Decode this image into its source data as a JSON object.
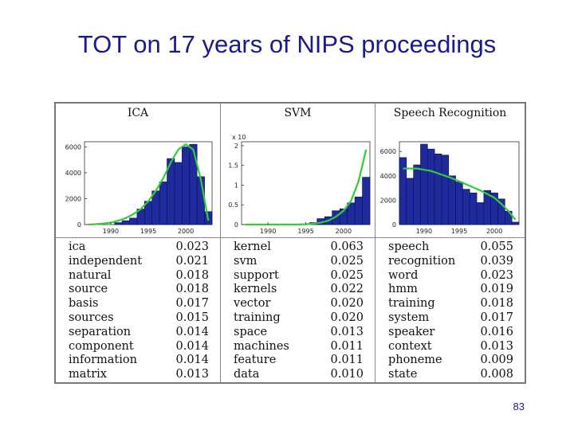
{
  "slide": {
    "title": "TOT on 17 years of NIPS proceedings",
    "page_number": "83"
  },
  "colors": {
    "title": "#1a1a8a",
    "bar": "#1f2a9c",
    "bar_edge": "#0a0f55",
    "curve": "#33cc33"
  },
  "chart_data": [
    {
      "type": "bar",
      "title": "ICA",
      "x": [
        1987,
        1988,
        1989,
        1990,
        1991,
        1992,
        1993,
        1994,
        1995,
        1996,
        1997,
        1998,
        1999,
        2000,
        2001,
        2002,
        2003
      ],
      "values": [
        0,
        0,
        0,
        0,
        150,
        300,
        500,
        1200,
        1800,
        2600,
        3300,
        5100,
        4800,
        6000,
        6200,
        3700,
        1000
      ],
      "curve": [
        0,
        30,
        80,
        150,
        300,
        500,
        800,
        1200,
        1800,
        2600,
        3600,
        4800,
        5800,
        6200,
        5800,
        3500,
        300
      ],
      "xticks": [
        1990,
        1995,
        2000
      ],
      "yticks": [
        0,
        2000,
        4000,
        6000
      ],
      "ytick_labels": [
        "0",
        "2000",
        "4000",
        "6000"
      ],
      "xlim": [
        1986.5,
        2003.5
      ],
      "ylim": [
        0,
        6400
      ]
    },
    {
      "type": "bar",
      "title": "SVM",
      "scale_label": "x 10",
      "x": [
        1987,
        1988,
        1989,
        1990,
        1991,
        1992,
        1993,
        1994,
        1995,
        1996,
        1997,
        1998,
        1999,
        2000,
        2001,
        2002,
        2003
      ],
      "values": [
        0,
        0,
        0,
        0,
        0,
        0,
        0,
        0,
        0,
        500,
        1500,
        2000,
        3500,
        4000,
        5500,
        7000,
        12000
      ],
      "curve": [
        0,
        0,
        0,
        0,
        0,
        0,
        0,
        20,
        80,
        200,
        500,
        1000,
        2000,
        3500,
        6000,
        11000,
        19000
      ],
      "xticks": [
        1990,
        1995,
        2000
      ],
      "yticks": [
        0,
        5000,
        10000,
        15000,
        20000
      ],
      "ytick_labels": [
        "0",
        "0.5",
        "1",
        "1.5",
        "2"
      ],
      "xlim": [
        1986.5,
        2003.5
      ],
      "ylim": [
        0,
        21000
      ]
    },
    {
      "type": "bar",
      "title": "Speech Recognition",
      "x": [
        1987,
        1988,
        1989,
        1990,
        1991,
        1992,
        1993,
        1994,
        1995,
        1996,
        1997,
        1998,
        1999,
        2000,
        2001,
        2002,
        2003
      ],
      "values": [
        5500,
        3800,
        4900,
        6600,
        6200,
        5800,
        5700,
        4000,
        3500,
        2900,
        2600,
        1800,
        2800,
        2600,
        2100,
        1100,
        200
      ],
      "curve": [
        4600,
        4600,
        4600,
        4500,
        4400,
        4200,
        4000,
        3800,
        3550,
        3300,
        3050,
        2800,
        2500,
        2200,
        1700,
        1100,
        400
      ],
      "xticks": [
        1990,
        1995,
        2000
      ],
      "yticks": [
        0,
        2000,
        4000,
        6000
      ],
      "ytick_labels": [
        "0",
        "2000",
        "4000",
        "6000"
      ],
      "xlim": [
        1986.5,
        2003.5
      ],
      "ylim": [
        0,
        6800
      ]
    }
  ],
  "topics": [
    {
      "name": "ICA",
      "words": [
        {
          "word": "ica",
          "prob": "0.023"
        },
        {
          "word": "independent",
          "prob": "0.021"
        },
        {
          "word": "natural",
          "prob": "0.018"
        },
        {
          "word": "source",
          "prob": "0.018"
        },
        {
          "word": "basis",
          "prob": "0.017"
        },
        {
          "word": "sources",
          "prob": "0.015"
        },
        {
          "word": "separation",
          "prob": "0.014"
        },
        {
          "word": "component",
          "prob": "0.014"
        },
        {
          "word": "information",
          "prob": "0.014"
        },
        {
          "word": "matrix",
          "prob": "0.013"
        }
      ]
    },
    {
      "name": "SVM",
      "words": [
        {
          "word": "kernel",
          "prob": "0.063"
        },
        {
          "word": "svm",
          "prob": "0.025"
        },
        {
          "word": "support",
          "prob": "0.025"
        },
        {
          "word": "kernels",
          "prob": "0.022"
        },
        {
          "word": "vector",
          "prob": "0.020"
        },
        {
          "word": "training",
          "prob": "0.020"
        },
        {
          "word": "space",
          "prob": "0.013"
        },
        {
          "word": "machines",
          "prob": "0.011"
        },
        {
          "word": "feature",
          "prob": "0.011"
        },
        {
          "word": "data",
          "prob": "0.010"
        }
      ]
    },
    {
      "name": "Speech Recognition",
      "words": [
        {
          "word": "speech",
          "prob": "0.055"
        },
        {
          "word": "recognition",
          "prob": "0.039"
        },
        {
          "word": "word",
          "prob": "0.023"
        },
        {
          "word": "hmm",
          "prob": "0.019"
        },
        {
          "word": "training",
          "prob": "0.018"
        },
        {
          "word": "system",
          "prob": "0.017"
        },
        {
          "word": "speaker",
          "prob": "0.016"
        },
        {
          "word": "context",
          "prob": "0.013"
        },
        {
          "word": "phoneme",
          "prob": "0.009"
        },
        {
          "word": "state",
          "prob": "0.008"
        }
      ]
    }
  ]
}
